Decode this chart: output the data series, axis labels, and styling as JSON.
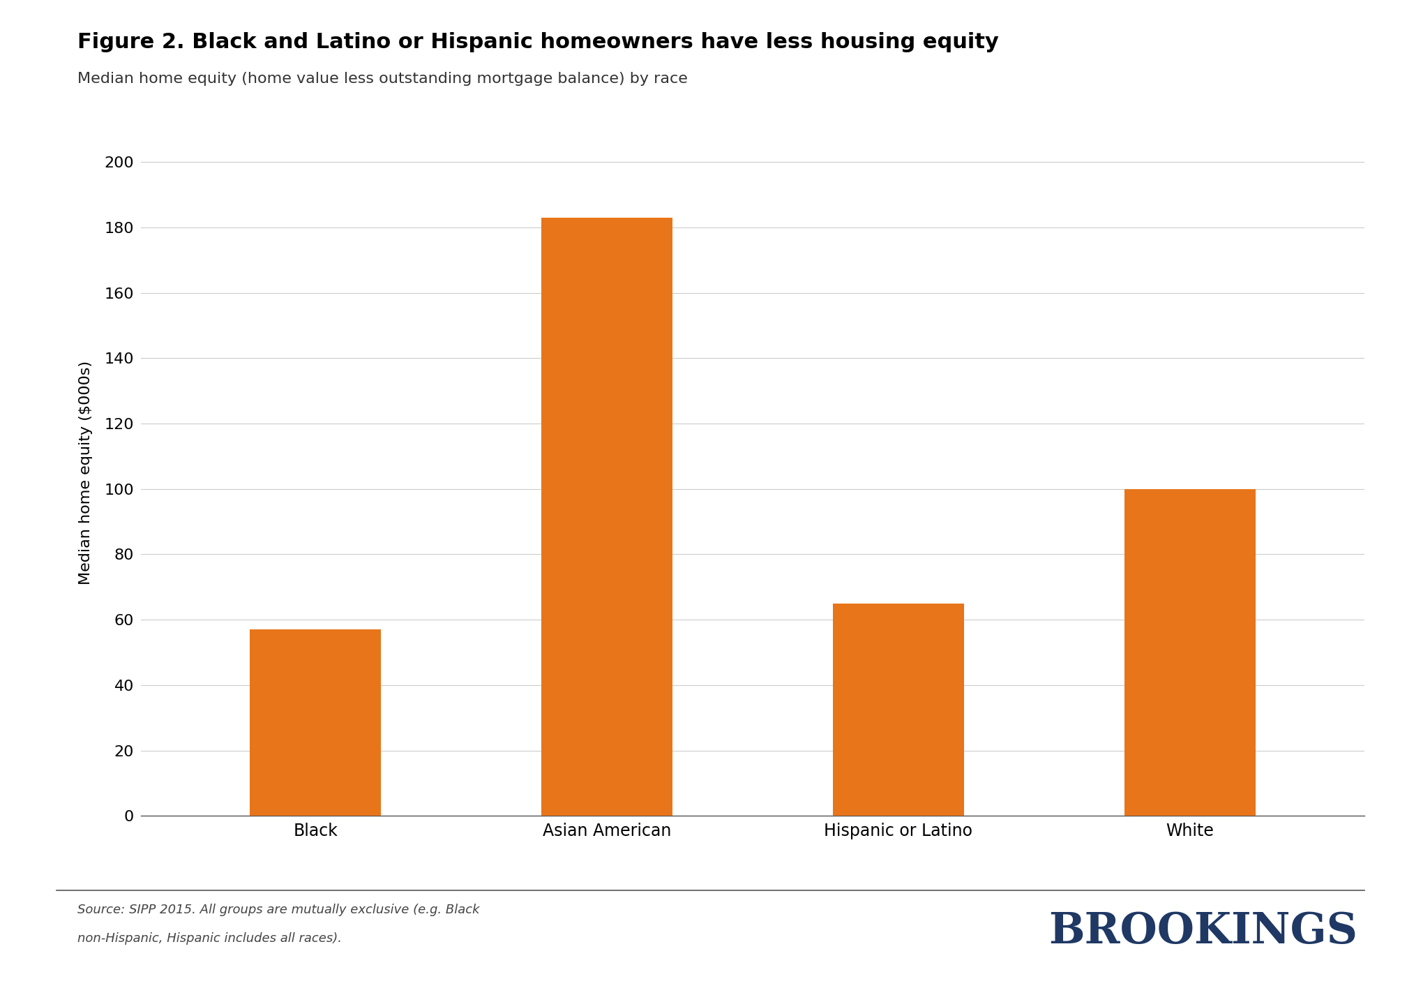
{
  "title": "Figure 2. Black and Latino or Hispanic homeowners have less housing equity",
  "subtitle": "Median home equity (home value less outstanding mortgage balance) by race",
  "categories": [
    "Black",
    "Asian American",
    "Hispanic or Latino",
    "White"
  ],
  "values": [
    57,
    183,
    65,
    100
  ],
  "bar_color": "#E8751A",
  "ylabel": "Median home equity ($000s)",
  "ylim": [
    0,
    210
  ],
  "yticks": [
    0,
    20,
    40,
    60,
    80,
    100,
    120,
    140,
    160,
    180,
    200
  ],
  "source_line1": "Source: SIPP 2015. All groups are mutually exclusive (e.g. Black",
  "source_line2": "non-Hispanic, Hispanic includes all races).",
  "brookings_text": "BROOKINGS",
  "brookings_color": "#1F3864",
  "background_color": "#FFFFFF",
  "title_fontsize": 22,
  "subtitle_fontsize": 16,
  "ylabel_fontsize": 16,
  "tick_fontsize": 16,
  "xtick_fontsize": 17,
  "source_fontsize": 13,
  "brookings_fontsize": 44,
  "grid_color": "#CCCCCC",
  "separator_color": "#555555",
  "text_color": "#000000",
  "subtitle_color": "#333333",
  "source_color": "#444444"
}
